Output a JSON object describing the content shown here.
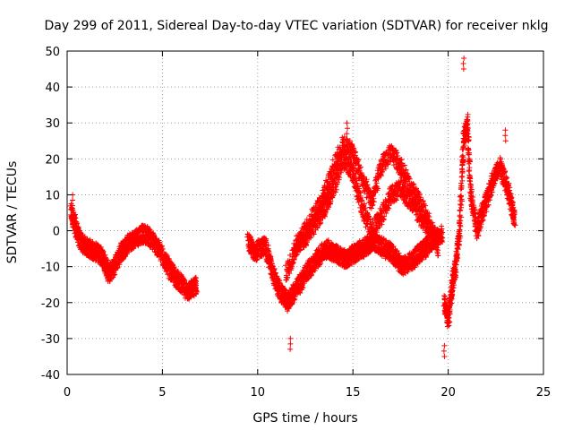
{
  "chart_data": {
    "type": "scatter",
    "title": "Day 299 of 2011, Sidereal Day-to-day VTEC variation (SDTVAR) for receiver nklg",
    "xlabel": "GPS time / hours",
    "ylabel": "SDTVAR / TECUs",
    "xlim": [
      0,
      25
    ],
    "ylim": [
      -40,
      50
    ],
    "xticks": [
      "0",
      "5",
      "10",
      "15",
      "20",
      "25"
    ],
    "yticks": [
      "-40",
      "-30",
      "-20",
      "-10",
      "0",
      "10",
      "20",
      "30",
      "40",
      "50"
    ],
    "grid": true,
    "marker": "plus",
    "series_color": "#ff0000",
    "segments": [
      {
        "x": [
          0.2,
          0.4,
          0.6,
          0.9,
          1.2,
          1.5,
          1.8,
          2.0,
          2.2,
          2.5,
          2.8,
          3.0,
          3.3,
          3.6,
          3.9,
          4.2,
          4.5,
          4.8,
          5.1,
          5.4,
          5.7,
          6.0,
          6.3,
          6.6,
          6.8
        ],
        "y": [
          5,
          2,
          -2,
          -4,
          -5,
          -6,
          -7,
          -9,
          -12,
          -10,
          -6,
          -5,
          -3,
          -2,
          -1,
          -1,
          -3,
          -5,
          -8,
          -11,
          -13,
          -15,
          -17,
          -16,
          -15
        ]
      },
      {
        "x": [
          9.5,
          9.8,
          10.1,
          10.4,
          10.7,
          11.0,
          11.3,
          11.6,
          11.9,
          12.2,
          12.5,
          12.8,
          13.1,
          13.4,
          13.7,
          14.0,
          14.3,
          14.6,
          14.9,
          15.2,
          15.5,
          15.8,
          16.1,
          16.4,
          16.7,
          17.0,
          17.3,
          17.6,
          17.9,
          18.2,
          18.5,
          18.8,
          19.1,
          19.4,
          19.7
        ],
        "y": [
          -3,
          -6,
          -5,
          -4,
          -10,
          -15,
          -18,
          -20,
          -17,
          -15,
          -12,
          -10,
          -8,
          -6,
          -5,
          -6,
          -7,
          -8,
          -7,
          -6,
          -5,
          -4,
          -3,
          -4,
          -5,
          -6,
          -8,
          -10,
          -9,
          -8,
          -6,
          -5,
          -3,
          -2,
          -1
        ]
      },
      {
        "x": [
          11.5,
          12.0,
          12.5,
          13.0,
          13.5,
          14.0,
          14.5,
          15.0,
          15.5,
          16.0,
          16.5,
          17.0,
          17.5,
          18.0,
          18.5,
          19.0,
          19.5
        ],
        "y": [
          -12,
          -5,
          0,
          5,
          10,
          18,
          24,
          22,
          14,
          8,
          18,
          22,
          18,
          12,
          8,
          2,
          -5
        ]
      },
      {
        "x": [
          12.0,
          12.5,
          13.0,
          13.5,
          14.0,
          14.5,
          15.0,
          15.5,
          16.0,
          16.5,
          17.0,
          17.5,
          18.0,
          18.5,
          19.0
        ],
        "y": [
          -4,
          -2,
          2,
          6,
          12,
          20,
          16,
          6,
          0,
          4,
          10,
          12,
          8,
          4,
          0
        ]
      },
      {
        "x": [
          19.8,
          20.0,
          20.2,
          20.4,
          20.6,
          20.8,
          21.0,
          21.2,
          21.5,
          21.8,
          22.1,
          22.4,
          22.7,
          23.0,
          23.3,
          23.5
        ],
        "y": [
          -20,
          -25,
          -15,
          -10,
          0,
          25,
          30,
          10,
          0,
          5,
          10,
          15,
          18,
          14,
          8,
          3
        ]
      }
    ],
    "extremes": [
      {
        "x": 14.7,
        "y": 30
      },
      {
        "x": 20.8,
        "y": 48
      },
      {
        "x": 19.8,
        "y": -32
      },
      {
        "x": 11.7,
        "y": -30
      },
      {
        "x": 0.3,
        "y": 10
      },
      {
        "x": 23.0,
        "y": 28
      }
    ]
  }
}
